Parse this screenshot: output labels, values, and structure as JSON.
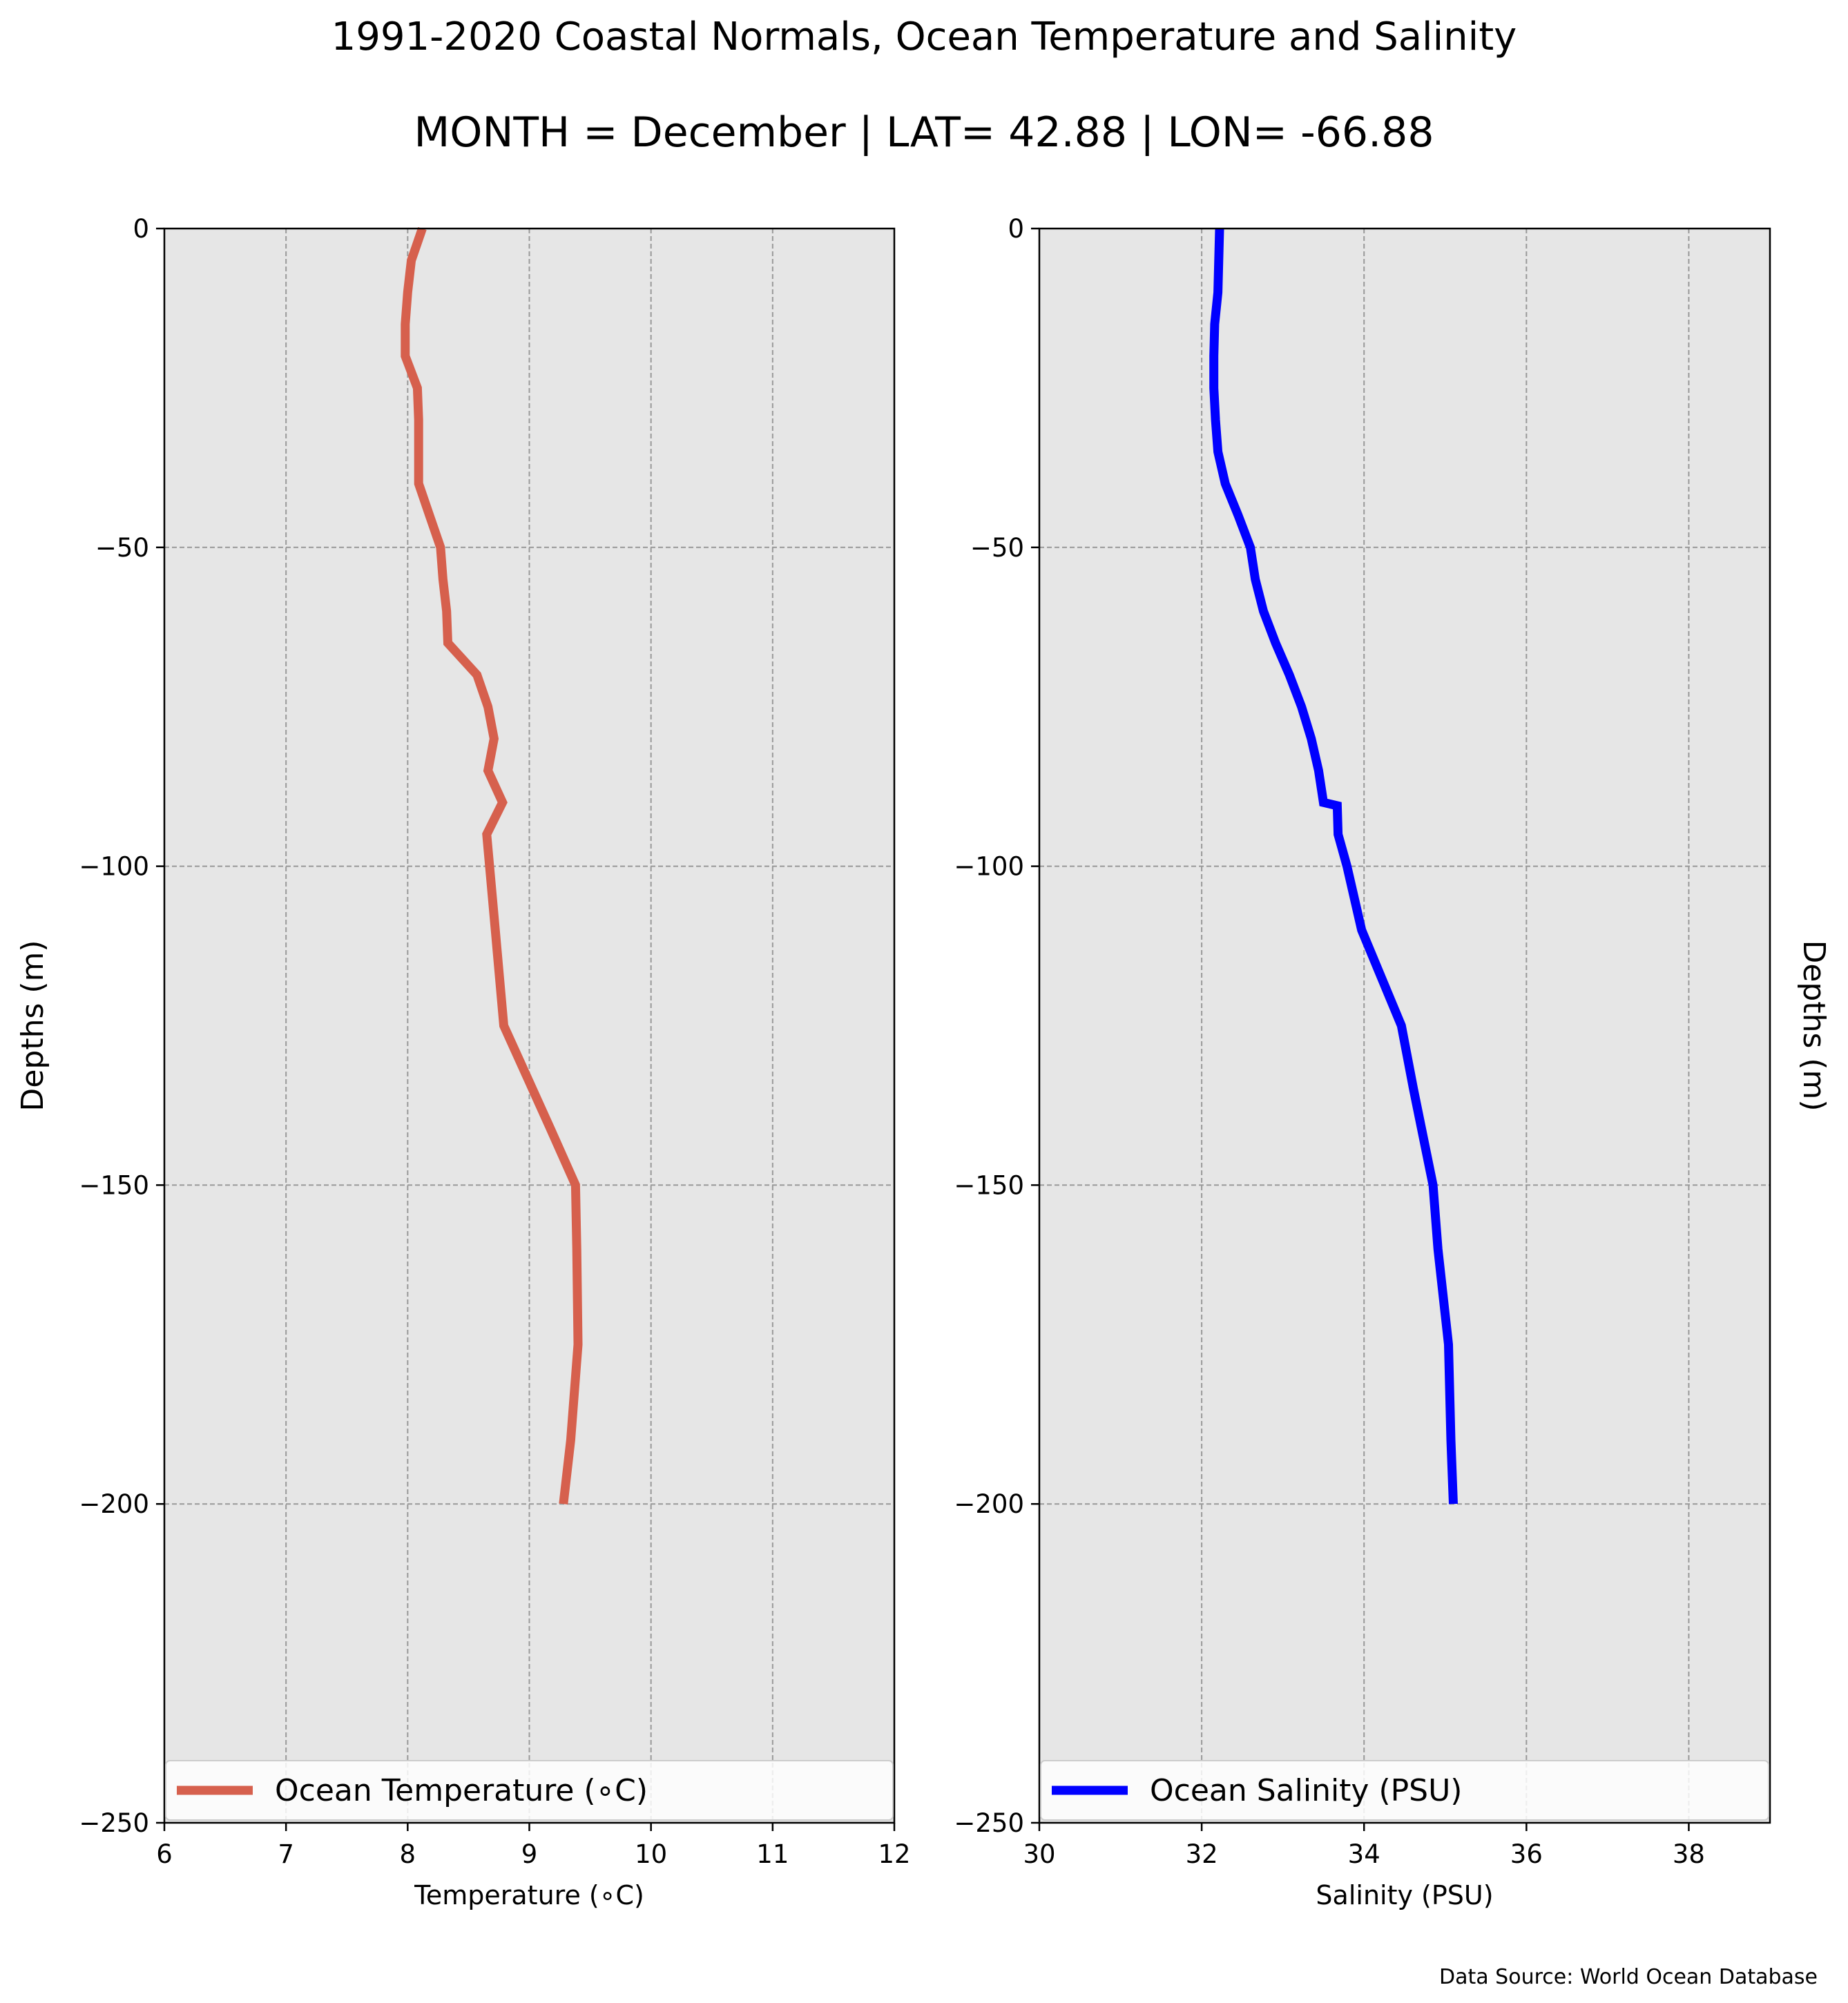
{
  "title": "1991-2020 Coastal Normals, Ocean Temperature and Salinity",
  "subtitle": "MONTH = December | LAT= 42.88 | LON= -66.88",
  "source_note": "Data Source: World Ocean Database",
  "colors": {
    "background": "#ffffff",
    "plot_bg": "#e6e6e6",
    "grid": "#999999",
    "temperature_line": "#d6604d",
    "salinity_line": "#0000ff"
  },
  "chart_data": [
    {
      "type": "line",
      "xlabel": "Temperature ($^\\circ$C)",
      "xlabel_display": "Temperature (∘C)",
      "ylabel": "Depths (m)",
      "xlim": [
        6,
        12
      ],
      "ylim": [
        -250,
        0
      ],
      "xticks": [
        "6",
        "7",
        "8",
        "9",
        "10",
        "11",
        "12"
      ],
      "yticks": [
        "0",
        "−50",
        "−100",
        "−150",
        "−200",
        "−250"
      ],
      "grid": true,
      "legend": "bottom",
      "series": [
        {
          "name": "Ocean Temperature (∘C)",
          "x": [
            8.12,
            8.03,
            8.0,
            7.98,
            7.98,
            8.08,
            8.09,
            8.09,
            8.18,
            8.27,
            8.29,
            8.32,
            8.33,
            8.57,
            8.66,
            8.71,
            8.66,
            8.78,
            8.65,
            8.72,
            8.79,
            8.98,
            9.17,
            9.38,
            9.39,
            9.4,
            9.34,
            9.28
          ],
          "y": [
            0,
            -5,
            -10,
            -15,
            -20,
            -25,
            -30,
            -40,
            -45,
            -50,
            -55,
            -60,
            -65,
            -70,
            -75,
            -80,
            -85,
            -90,
            -95,
            -110,
            -125,
            -133,
            -141,
            -150,
            -160,
            -175,
            -190,
            -200
          ]
        }
      ]
    },
    {
      "type": "line",
      "xlabel": "Salinity (PSU)",
      "ylabel": "Depths (m)",
      "xlim": [
        30,
        39
      ],
      "ylim": [
        -250,
        0
      ],
      "xticks": [
        "30",
        "32",
        "34",
        "36",
        "38"
      ],
      "yticks": [
        "0",
        "−50",
        "−100",
        "−150",
        "−200",
        "−250"
      ],
      "grid": true,
      "legend": "bottom",
      "series": [
        {
          "name": "Ocean Salinity (PSU)",
          "x": [
            32.22,
            32.21,
            32.2,
            32.16,
            32.15,
            32.15,
            32.17,
            32.2,
            32.29,
            32.45,
            32.6,
            32.66,
            32.76,
            32.91,
            33.08,
            33.23,
            33.35,
            33.44,
            33.5,
            33.67,
            33.68,
            33.79,
            33.97,
            34.46,
            34.61,
            34.85,
            34.91,
            35.04,
            35.07,
            35.1
          ],
          "y": [
            0,
            -5,
            -10,
            -15,
            -20,
            -25,
            -30,
            -35,
            -40,
            -45,
            -50,
            -55,
            -60,
            -65,
            -70,
            -75,
            -80,
            -85,
            -90,
            -90.5,
            -95,
            -100,
            -110,
            -125,
            -135,
            -150,
            -160,
            -175,
            -190,
            -200
          ]
        }
      ]
    }
  ]
}
